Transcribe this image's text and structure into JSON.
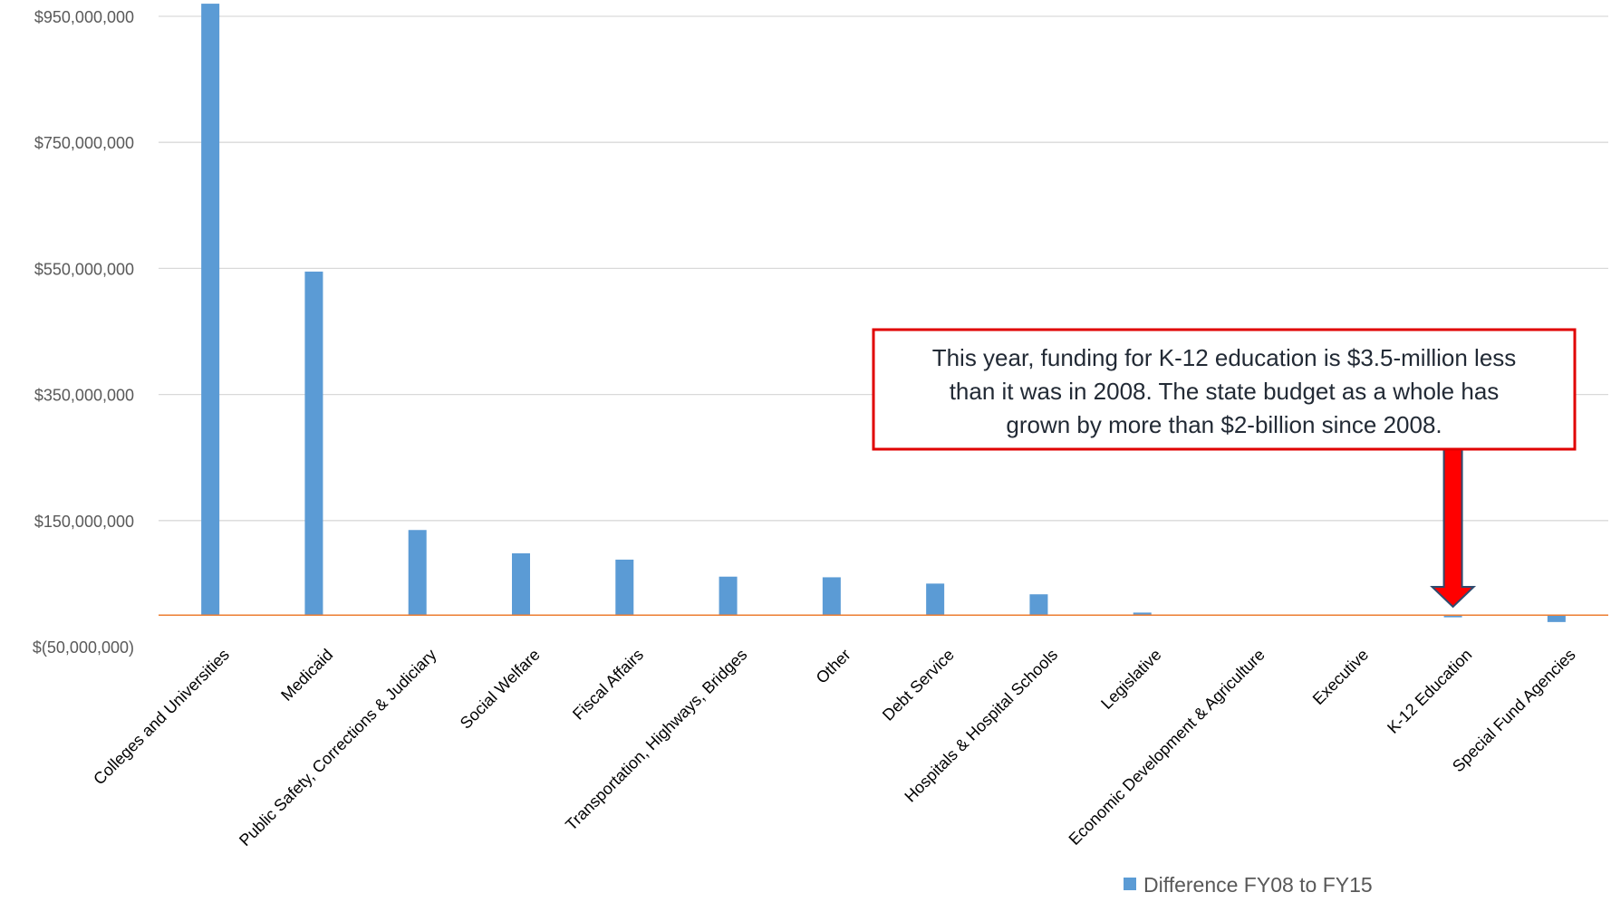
{
  "chart_data": {
    "type": "bar",
    "title": "",
    "xlabel": "",
    "ylabel": "",
    "ylim": [
      -50000000,
      950000000
    ],
    "yticks": [
      -50000000,
      150000000,
      350000000,
      550000000,
      750000000,
      950000000
    ],
    "ytick_labels": [
      "$(50,000,000)",
      "$150,000,000",
      "$350,000,000",
      "$550,000,000",
      "$750,000,000",
      "$950,000,000"
    ],
    "grid": true,
    "legend_position": "bottom-right",
    "categories": [
      "Colleges and Universities",
      "Medicaid",
      "Public Safety, Corrections & Judiciary",
      "Social Welfare",
      "Fiscal Affairs",
      "Transportation, Highways, Bridges",
      "Other",
      "Debt Service",
      "Hospitals & Hospital Schools",
      "Legislative",
      "Economic Development & Agriculture",
      "Executive",
      "K-12 Education",
      "Special Fund Agencies"
    ],
    "series": [
      {
        "name": "Difference FY08 to FY15",
        "color": "#5b9bd5",
        "values": [
          970000000,
          545000000,
          135000000,
          98000000,
          88000000,
          61000000,
          60000000,
          50000000,
          33000000,
          4000000,
          0,
          0,
          -3500000,
          -11000000
        ]
      }
    ],
    "zero_line_color": "#ed7d31",
    "annotation": {
      "text_lines": [
        "This year, funding for K-12 education is $3.5-million less",
        "than it was in 2008. The state budget as a whole has",
        "grown by more than $2-billion since 2008."
      ],
      "border_color": "#e00000",
      "arrow_color": "#ff0000",
      "arrow_outline_color": "#2f4b6e",
      "points_to": "K-12 Education"
    }
  }
}
